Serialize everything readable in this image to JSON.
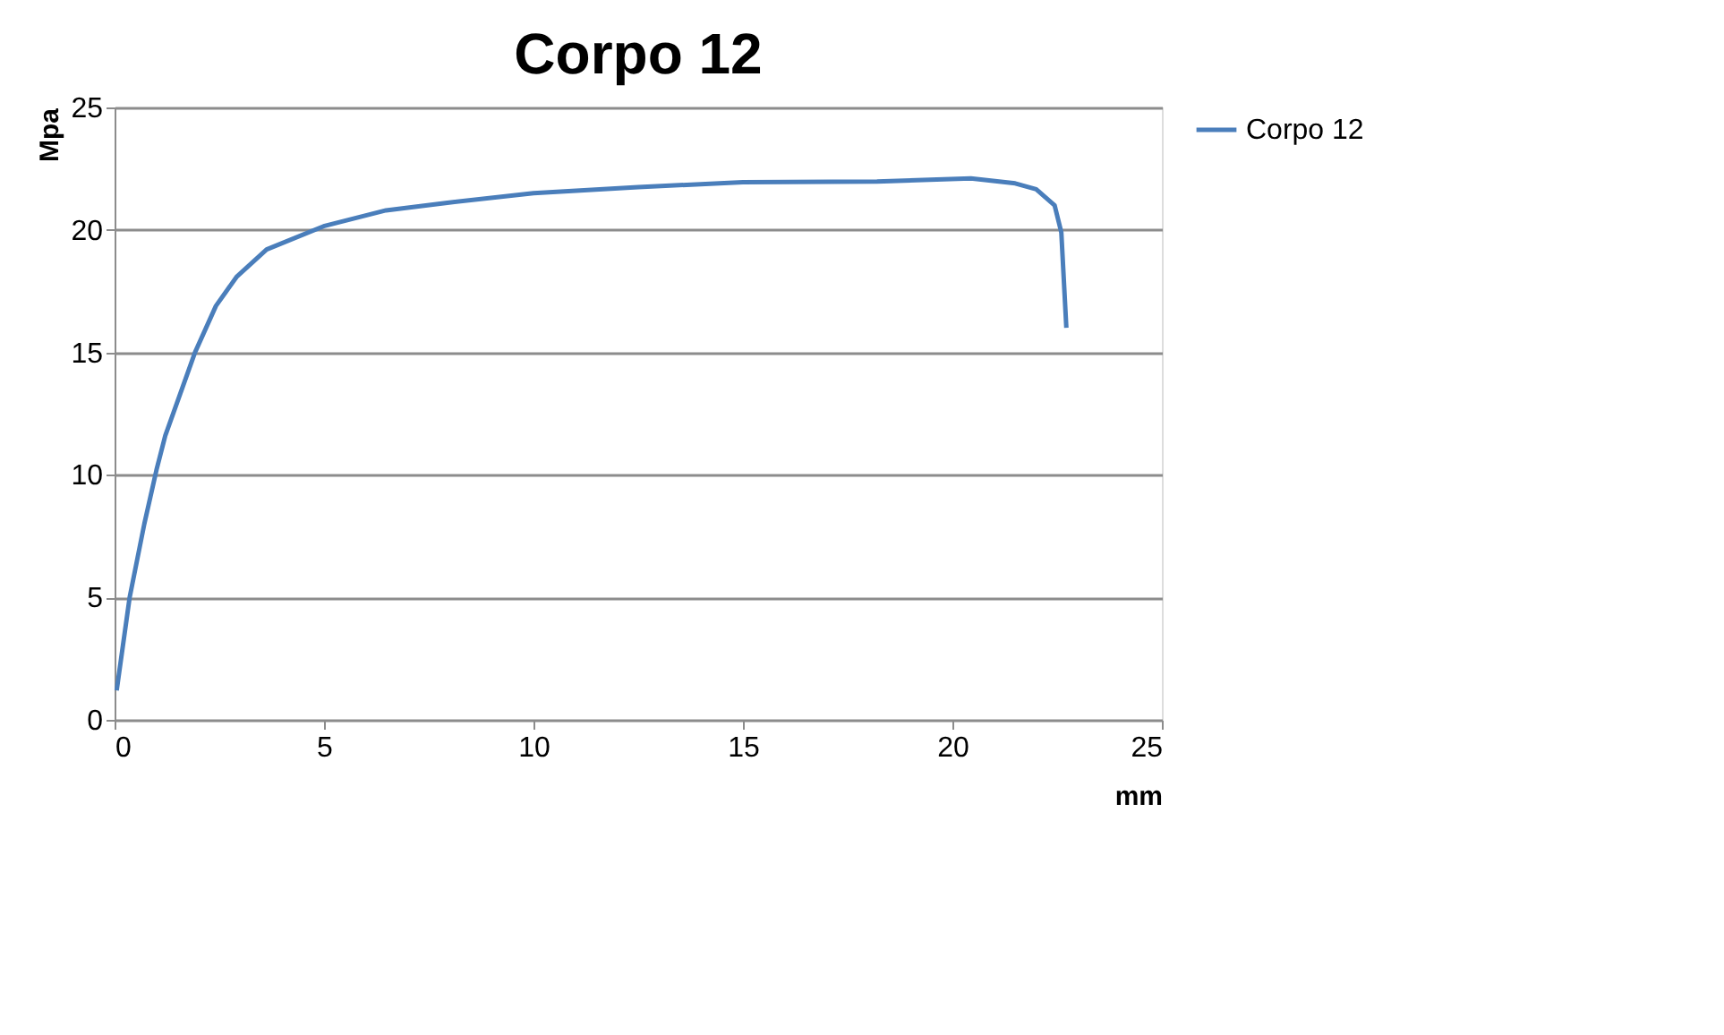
{
  "chart_data": {
    "type": "line",
    "title": "Corpo 12",
    "xlabel": "mm",
    "ylabel": "Mpa",
    "xlim": [
      0,
      25
    ],
    "xticks": [
      0,
      5,
      10,
      15,
      20,
      25
    ],
    "ylim": [
      0,
      25
    ],
    "yticks": [
      0,
      5,
      10,
      15,
      20,
      25
    ],
    "grid": "y",
    "legend": "right",
    "marker": "none",
    "line_style": "solid",
    "series": [
      {
        "name": "Corpo 12",
        "color": "#4a7ebb",
        "x": [
          0.05,
          0.36,
          0.71,
          1.0,
          1.21,
          1.92,
          2.42,
          2.92,
          3.63,
          4.99,
          6.48,
          7.9,
          10,
          12.5,
          15,
          18.2,
          20.44,
          21.5,
          22.0,
          22.44,
          22.6,
          22.72
        ],
        "values": [
          1.2,
          5.0,
          8.0,
          10.2,
          11.6,
          15.0,
          16.9,
          18.1,
          19.2,
          20.15,
          20.8,
          21.1,
          21.5,
          21.75,
          21.95,
          21.98,
          22.1,
          21.9,
          21.66,
          21.0,
          19.9,
          16.0
        ]
      }
    ]
  }
}
